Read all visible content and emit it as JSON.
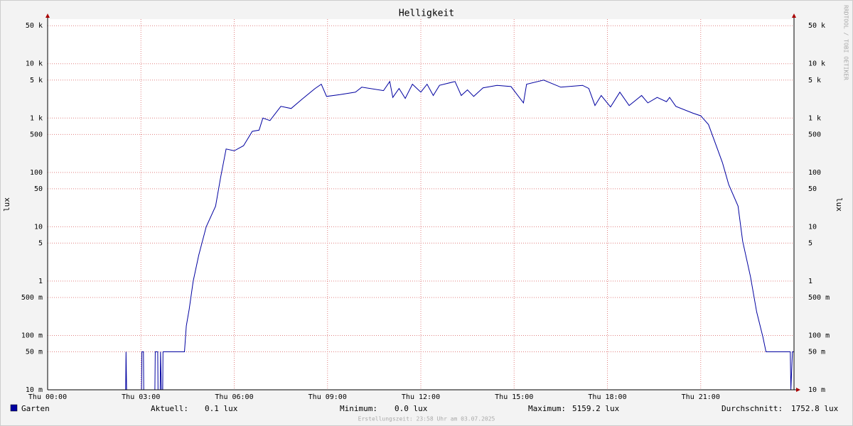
{
  "chart_data": {
    "type": "line",
    "title": "Helligkeit",
    "y_label": "lux",
    "watermark": "RRDTOOL / TOBI OETIKER",
    "footer": "Erstellungszeit: 23:58 Uhr am 03.07.2025",
    "log_y": true,
    "grid": true,
    "xlim": [
      0,
      24
    ],
    "xticks": [
      {
        "value": 0,
        "label": "Thu 00:00"
      },
      {
        "value": 3,
        "label": "Thu 03:00"
      },
      {
        "value": 6,
        "label": "Thu 06:00"
      },
      {
        "value": 9,
        "label": "Thu 09:00"
      },
      {
        "value": 12,
        "label": "Thu 12:00"
      },
      {
        "value": 15,
        "label": "Thu 15:00"
      },
      {
        "value": 18,
        "label": "Thu 18:00"
      },
      {
        "value": 21,
        "label": "Thu 21:00"
      }
    ],
    "ylim": [
      0.01,
      66000
    ],
    "yticks": [
      {
        "value": 0.01,
        "label": "10 m"
      },
      {
        "value": 0.05,
        "label": "50 m"
      },
      {
        "value": 0.1,
        "label": "100 m"
      },
      {
        "value": 0.5,
        "label": "500 m"
      },
      1,
      5,
      10,
      50,
      100,
      500,
      {
        "value": 1000,
        "label": "1 k"
      },
      {
        "value": 5000,
        "label": "5 k"
      },
      {
        "value": 10000,
        "label": "10 k"
      },
      {
        "value": 50000,
        "label": "50 k"
      }
    ],
    "x": [
      0,
      2.51,
      2.52,
      2.54,
      3.02,
      3.03,
      3.08,
      3.09,
      3.45,
      3.46,
      3.54,
      3.55,
      3.62,
      3.63,
      3.66,
      3.7,
      3.71,
      4.4,
      4.46,
      4.55,
      4.68,
      4.86,
      5.1,
      5.4,
      5.56,
      5.74,
      6.0,
      6.3,
      6.58,
      6.8,
      6.92,
      7.15,
      7.5,
      7.83,
      8.17,
      8.6,
      8.8,
      8.97,
      9.4,
      9.9,
      10.1,
      10.8,
      11.0,
      11.1,
      11.3,
      11.5,
      11.73,
      12.0,
      12.2,
      12.4,
      12.6,
      13.1,
      13.3,
      13.5,
      13.7,
      14.0,
      14.45,
      14.9,
      15.3,
      15.4,
      15.95,
      16.5,
      17.2,
      17.4,
      17.6,
      17.8,
      18.1,
      18.4,
      18.7,
      19.1,
      19.3,
      19.6,
      19.9,
      20.0,
      20.2,
      20.75,
      21.0,
      21.25,
      21.5,
      21.7,
      21.9,
      22.2,
      22.35,
      22.6,
      22.8,
      23.0,
      23.1,
      23.88,
      23.9,
      23.95,
      24
    ],
    "series": [
      {
        "name": "Garten",
        "color": "#0000a0",
        "values": [
          0.01,
          0.01,
          0.05,
          0.01,
          0.01,
          0.05,
          0.05,
          0.01,
          0.01,
          0.05,
          0.05,
          0.01,
          0.01,
          0.05,
          0.01,
          0.01,
          0.05,
          0.05,
          0.15,
          0.3,
          1,
          3,
          10,
          24,
          80,
          270,
          250,
          310,
          570,
          600,
          1000,
          900,
          1640,
          1500,
          2200,
          3500,
          4200,
          2500,
          2700,
          3000,
          3700,
          3200,
          4700,
          2400,
          3500,
          2300,
          4200,
          3000,
          4200,
          2600,
          4000,
          4700,
          2600,
          3300,
          2500,
          3600,
          4000,
          3800,
          1900,
          4200,
          5000,
          3700,
          4000,
          3500,
          1700,
          2600,
          1600,
          3000,
          1700,
          2600,
          1900,
          2400,
          2000,
          2400,
          1640,
          1230,
          1100,
          760,
          310,
          150,
          60,
          24,
          5.4,
          1.2,
          0.27,
          0.093,
          0.05,
          0.05,
          0.01,
          0.05,
          0.05
        ]
      }
    ],
    "stats": [
      {
        "label": "Aktuell:",
        "value": "0.1 lux"
      },
      {
        "label": "Minimum:",
        "value": "0.0 lux"
      },
      {
        "label": "Maximum:",
        "value": "5159.2 lux"
      },
      {
        "label": "Durchschnitt:",
        "value": "1752.8 lux"
      }
    ]
  }
}
